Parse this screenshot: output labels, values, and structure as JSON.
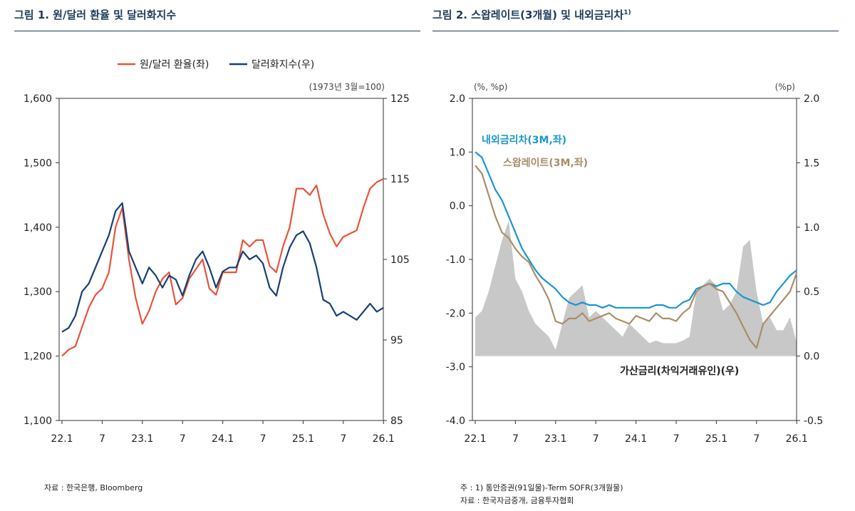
{
  "left": {
    "title": "그림 1. 원/달러 환율 및 달러화지수",
    "source": "자료 : 한국은행, Bloomberg",
    "unit_note": "(1973년 3월=100)"
  },
  "right": {
    "title_main": "그림 2. 스왑레이트(3개월) 및 내외금리차",
    "title_sup": "1)",
    "unit_left": "(%, %p)",
    "unit_right": "(%p)",
    "note": "주 : 1) 통안증권(91일물)-Term SOFR(3개월물)",
    "source": "자료 : 한국자금중개, 금융투자협회"
  },
  "colors": {
    "krw": "#e8533c",
    "dxy": "#163f73",
    "spread": "#1a95cf",
    "swap": "#a88d68",
    "area": "#c8c8c8"
  },
  "chart_data": [
    {
      "type": "line",
      "x_ticks": [
        "22.1",
        "7",
        "23.1",
        "7",
        "24.1",
        "7",
        "25.1",
        "7",
        "26.1"
      ],
      "y_left_ticks": [
        "1,600",
        "1,500",
        "1,400",
        "1,300",
        "1,200",
        "1,100"
      ],
      "y_right_ticks": [
        "125",
        "115",
        "105",
        "95",
        "85"
      ],
      "ylim_left": [
        1100,
        1600
      ],
      "ylim_right": [
        85,
        125
      ],
      "legend": "top-center",
      "series": [
        {
          "name": "원/달러 환율(좌)",
          "axis": "left",
          "color": "#e8533c",
          "x": [
            "22.1",
            "22.2",
            "22.3",
            "22.4",
            "22.5",
            "22.6",
            "22.7",
            "22.8",
            "22.9",
            "22.10",
            "22.11",
            "22.12",
            "23.1",
            "23.2",
            "23.3",
            "23.4",
            "23.5",
            "23.6",
            "23.7",
            "23.8",
            "23.9",
            "23.10",
            "23.11",
            "23.12",
            "24.1",
            "24.2",
            "24.3",
            "24.4",
            "24.5",
            "24.6",
            "24.7",
            "24.8",
            "24.9",
            "24.10",
            "24.11",
            "24.12",
            "25.1",
            "25.2",
            "25.3",
            "25.4",
            "25.5",
            "25.6",
            "25.7",
            "25.8",
            "25.9",
            "25.10",
            "25.11",
            "25.12",
            "26.1"
          ],
          "values": [
            1200,
            1210,
            1215,
            1245,
            1275,
            1295,
            1305,
            1330,
            1400,
            1430,
            1350,
            1290,
            1250,
            1270,
            1300,
            1320,
            1330,
            1280,
            1290,
            1320,
            1335,
            1350,
            1305,
            1295,
            1330,
            1330,
            1330,
            1380,
            1370,
            1380,
            1380,
            1340,
            1330,
            1370,
            1400,
            1460,
            1460,
            1450,
            1465,
            1420,
            1390,
            1370,
            1385,
            1390,
            1395,
            1430,
            1460,
            1470,
            1475
          ]
        },
        {
          "name": "달러화지수(우)",
          "axis": "right",
          "color": "#163f73",
          "x": [
            "22.1",
            "22.2",
            "22.3",
            "22.4",
            "22.5",
            "22.6",
            "22.7",
            "22.8",
            "22.9",
            "22.10",
            "22.11",
            "22.12",
            "23.1",
            "23.2",
            "23.3",
            "23.4",
            "23.5",
            "23.6",
            "23.7",
            "23.8",
            "23.9",
            "23.10",
            "23.11",
            "23.12",
            "24.1",
            "24.2",
            "24.3",
            "24.4",
            "24.5",
            "24.6",
            "24.7",
            "24.8",
            "24.9",
            "24.10",
            "24.11",
            "24.12",
            "25.1",
            "25.2",
            "25.3",
            "25.4",
            "25.5",
            "25.6",
            "25.7",
            "25.8",
            "25.9",
            "25.10",
            "25.11",
            "25.12",
            "26.1"
          ],
          "values": [
            96,
            96.5,
            98,
            101,
            102,
            104,
            106,
            108,
            111,
            112,
            106,
            104,
            102,
            104,
            103,
            101.5,
            103,
            102.5,
            100.5,
            103,
            105,
            106,
            104,
            101.5,
            103.5,
            104,
            104,
            106,
            105,
            105.5,
            104.5,
            101.5,
            100.5,
            104,
            106.5,
            108,
            108.5,
            107,
            104,
            100,
            99.5,
            98,
            98.5,
            98,
            97.5,
            98.5,
            99.5,
            98.5,
            99
          ]
        }
      ]
    },
    {
      "type": "line",
      "x_ticks": [
        "22.1",
        "7",
        "23.1",
        "7",
        "24.1",
        "7",
        "25.1",
        "7",
        "26.1"
      ],
      "y_left_ticks": [
        "2.0",
        "1.0",
        "0.0",
        "-1.0",
        "-2.0",
        "-3.0",
        "-4.0"
      ],
      "y_right_ticks": [
        "2.0",
        "1.5",
        "1.0",
        "0.5",
        "0.0",
        "-0.5"
      ],
      "ylim_left": [
        -4.0,
        2.0
      ],
      "ylim_right": [
        -0.5,
        2.0
      ],
      "series": [
        {
          "name": "내외금리차(3M,좌)",
          "axis": "left",
          "color": "#1a95cf",
          "x": [
            "22.1",
            "22.2",
            "22.3",
            "22.4",
            "22.5",
            "22.6",
            "22.7",
            "22.8",
            "22.9",
            "22.10",
            "22.11",
            "22.12",
            "23.1",
            "23.2",
            "23.3",
            "23.4",
            "23.5",
            "23.6",
            "23.7",
            "23.8",
            "23.9",
            "23.10",
            "23.11",
            "23.12",
            "24.1",
            "24.2",
            "24.3",
            "24.4",
            "24.5",
            "24.6",
            "24.7",
            "24.8",
            "24.9",
            "24.10",
            "24.11",
            "24.12",
            "25.1",
            "25.2",
            "25.3",
            "25.4",
            "25.5",
            "25.6",
            "25.7",
            "25.8",
            "25.9",
            "25.10",
            "25.11",
            "25.12",
            "26.1"
          ],
          "values": [
            1.0,
            0.9,
            0.6,
            0.3,
            0.1,
            -0.2,
            -0.5,
            -0.8,
            -1.0,
            -1.2,
            -1.35,
            -1.45,
            -1.55,
            -1.7,
            -1.8,
            -1.85,
            -1.8,
            -1.85,
            -1.85,
            -1.9,
            -1.85,
            -1.9,
            -1.9,
            -1.9,
            -1.9,
            -1.9,
            -1.9,
            -1.85,
            -1.85,
            -1.9,
            -1.9,
            -1.8,
            -1.75,
            -1.55,
            -1.5,
            -1.45,
            -1.5,
            -1.45,
            -1.45,
            -1.6,
            -1.7,
            -1.75,
            -1.8,
            -1.85,
            -1.8,
            -1.6,
            -1.45,
            -1.3,
            -1.2
          ]
        },
        {
          "name": "스왑레이트(3M,좌)",
          "axis": "left",
          "color": "#a88d68",
          "x": [
            "22.1",
            "22.2",
            "22.3",
            "22.4",
            "22.5",
            "22.6",
            "22.7",
            "22.8",
            "22.9",
            "22.10",
            "22.11",
            "22.12",
            "23.1",
            "23.2",
            "23.3",
            "23.4",
            "23.5",
            "23.6",
            "23.7",
            "23.8",
            "23.9",
            "23.10",
            "23.11",
            "23.12",
            "24.1",
            "24.2",
            "24.3",
            "24.4",
            "24.5",
            "24.6",
            "24.7",
            "24.8",
            "24.9",
            "24.10",
            "24.11",
            "24.12",
            "25.1",
            "25.2",
            "25.3",
            "25.4",
            "25.5",
            "25.6",
            "25.7",
            "25.8",
            "25.9",
            "25.10",
            "25.11",
            "25.12",
            "26.1"
          ],
          "values": [
            0.75,
            0.6,
            0.2,
            -0.2,
            -0.5,
            -0.6,
            -0.8,
            -0.95,
            -1.05,
            -1.3,
            -1.5,
            -1.75,
            -2.15,
            -2.2,
            -2.1,
            -2.1,
            -2.0,
            -2.15,
            -2.1,
            -2.05,
            -2.0,
            -2.1,
            -2.15,
            -2.2,
            -2.05,
            -2.1,
            -2.15,
            -2.0,
            -2.1,
            -2.1,
            -2.15,
            -2.0,
            -1.9,
            -1.6,
            -1.5,
            -1.45,
            -1.55,
            -1.6,
            -1.8,
            -2.0,
            -2.25,
            -2.5,
            -2.65,
            -2.2,
            -2.05,
            -1.9,
            -1.75,
            -1.6,
            -1.25
          ]
        },
        {
          "name": "가산금리(차익거래유인)(우)",
          "axis": "right",
          "color": "#c8c8c8",
          "kind": "area",
          "x": [
            "22.1",
            "22.2",
            "22.3",
            "22.4",
            "22.5",
            "22.6",
            "22.7",
            "22.8",
            "22.9",
            "22.10",
            "22.11",
            "22.12",
            "23.1",
            "23.2",
            "23.3",
            "23.4",
            "23.5",
            "23.6",
            "23.7",
            "23.8",
            "23.9",
            "23.10",
            "23.11",
            "23.12",
            "24.1",
            "24.2",
            "24.3",
            "24.4",
            "24.5",
            "24.6",
            "24.7",
            "24.8",
            "24.9",
            "24.10",
            "24.11",
            "24.12",
            "25.1",
            "25.2",
            "25.3",
            "25.4",
            "25.5",
            "25.6",
            "25.7",
            "25.8",
            "25.9",
            "25.10",
            "25.11",
            "25.12",
            "26.1"
          ],
          "values": [
            0.3,
            0.35,
            0.5,
            0.7,
            0.9,
            1.05,
            0.6,
            0.5,
            0.35,
            0.25,
            0.2,
            0.15,
            0.05,
            0.25,
            0.45,
            0.5,
            0.55,
            0.3,
            0.35,
            0.3,
            0.25,
            0.2,
            0.15,
            0.25,
            0.2,
            0.15,
            0.1,
            0.12,
            0.1,
            0.1,
            0.1,
            0.12,
            0.15,
            0.5,
            0.55,
            0.6,
            0.55,
            0.35,
            0.4,
            0.5,
            0.85,
            0.9,
            0.5,
            0.25,
            0.3,
            0.2,
            0.2,
            0.3,
            0.1
          ]
        }
      ]
    }
  ]
}
